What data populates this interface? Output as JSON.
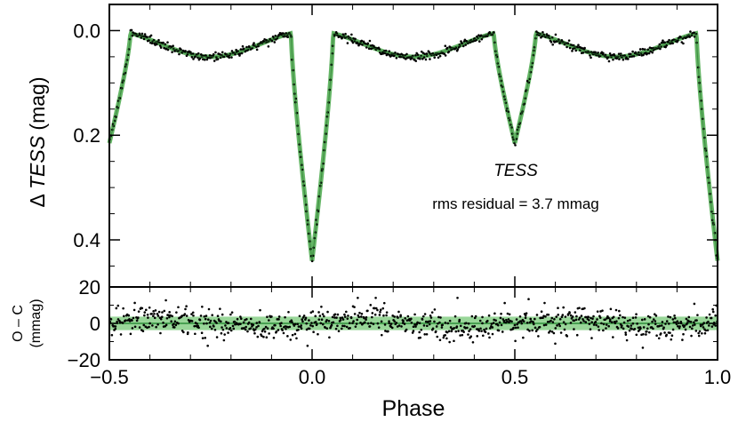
{
  "chart_data": [
    {
      "type": "line",
      "panel": "top",
      "ylabel_prefix": "Δ ",
      "ylabel_italic": "TESS",
      "ylabel_suffix": " (mag)",
      "annotation_title": "TESS",
      "annotation_text": "rms residual = 3.7 mmag",
      "xlim": [
        -0.5,
        1.0
      ],
      "ylim": [
        0.49,
        -0.05
      ],
      "yticks": [
        0.0,
        0.2,
        0.4
      ],
      "ytick_labels": [
        "0.0",
        "0.2",
        "0.4"
      ],
      "series": [
        {
          "name": "observed",
          "style": "points",
          "color": "#000000"
        },
        {
          "name": "model",
          "style": "line",
          "color": "#49a84a"
        }
      ],
      "model_params": {
        "primary_depth": 0.44,
        "secondary_depth": 0.215,
        "eclipse_half_width": 0.052,
        "out_of_eclipse_variation": 0.05
      }
    },
    {
      "type": "scatter",
      "panel": "bottom",
      "ylabel_line1": "O – C",
      "ylabel_line2": "(mmag)",
      "xlabel": "Phase",
      "xlim": [
        -0.5,
        1.0
      ],
      "ylim": [
        -20,
        20
      ],
      "yticks": [
        -20,
        0,
        20
      ],
      "ytick_labels": [
        "−20",
        "0",
        "20"
      ],
      "xticks": [
        -0.5,
        0.0,
        0.5,
        1.0
      ],
      "xtick_labels": [
        "−0.5",
        "0.0",
        "0.5",
        "1.0"
      ],
      "rms_band": 3.7,
      "band_color": "#7fcc7f",
      "line_color": "#2f8f3a"
    }
  ]
}
